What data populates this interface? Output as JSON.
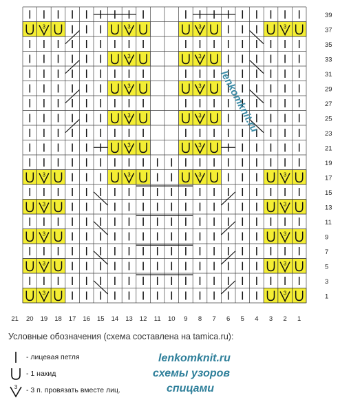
{
  "chart": {
    "row_numbers": [
      "39",
      "37",
      "35",
      "33",
      "31",
      "29",
      "27",
      "25",
      "23",
      "21",
      "19",
      "17",
      "15",
      "13",
      "11",
      "9",
      "7",
      "5",
      "3",
      "1"
    ],
    "col_numbers": [
      "21",
      "20",
      "19",
      "18",
      "17",
      "16",
      "15",
      "14",
      "13",
      "12",
      "11",
      "10",
      "9",
      "8",
      "7",
      "6",
      "5",
      "4",
      "3",
      "2",
      "1"
    ],
    "colors": {
      "highlight": "#f4ee33",
      "grid": "#444444",
      "symbol": "#111111"
    }
  },
  "legend": {
    "caption": "Условные обозначения (схема составлена на tamica.ru):",
    "items": [
      {
        "icon": "knit-stitch-icon",
        "label": "- лицевая петля"
      },
      {
        "icon": "yarn-over-icon",
        "label": "- 1 накид"
      },
      {
        "icon": "knit-3-together-icon",
        "label": "- 3 п. провязать вместе лиц."
      }
    ]
  },
  "brand": {
    "site": "lenkomknit.ru",
    "line2": "схемы узоров",
    "line3": "спицами",
    "watermark": "lenkomknit.ru"
  }
}
